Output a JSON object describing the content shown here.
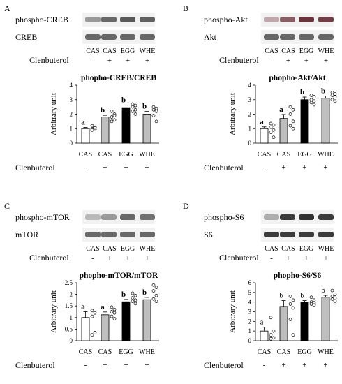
{
  "panels": [
    {
      "letter": "A",
      "blot_labels": [
        "phospho-CREB",
        "CREB"
      ],
      "lanes": [
        "CAS",
        "CAS",
        "EGG",
        "WHE"
      ],
      "treatment_label": "Clenbuterol",
      "treatment_signs": [
        "-",
        "+",
        "+",
        "+"
      ],
      "blot_colors": [
        "#505050",
        "#505050"
      ],
      "blot_intensity": [
        [
          0.55,
          0.85,
          0.95,
          0.9
        ],
        [
          0.85,
          0.85,
          0.85,
          0.85
        ]
      ]
    },
    {
      "letter": "B",
      "blot_labels": [
        "phospho-Akt",
        "Akt"
      ],
      "lanes": [
        "CAS",
        "CAS",
        "EGG",
        "WHE"
      ],
      "treatment_label": "Clenbuterol",
      "treatment_signs": [
        "-",
        "+",
        "+",
        "+"
      ],
      "blot_colors": [
        "#5a2028",
        "#505050"
      ],
      "blot_intensity": [
        [
          0.35,
          0.7,
          0.9,
          0.85
        ],
        [
          0.85,
          0.85,
          0.85,
          0.85
        ]
      ]
    },
    {
      "letter": "C",
      "blot_labels": [
        "phospho-mTOR",
        "mTOR"
      ],
      "lanes": [
        "CAS",
        "CAS",
        "EGG",
        "WHE"
      ],
      "treatment_label": "Clenbuterol",
      "treatment_signs": [
        "-",
        "+",
        "+",
        "+"
      ],
      "blot_colors": [
        "#505050",
        "#505050"
      ],
      "blot_intensity": [
        [
          0.35,
          0.55,
          0.85,
          0.8
        ],
        [
          0.85,
          0.85,
          0.85,
          0.85
        ]
      ]
    },
    {
      "letter": "D",
      "blot_labels": [
        "phospho-S6",
        "S6"
      ],
      "lanes": [
        "CAS",
        "CAS",
        "EGG",
        "WHE"
      ],
      "treatment_label": "Clenbuterol",
      "treatment_signs": [
        "-",
        "+",
        "+",
        "+"
      ],
      "blot_colors": [
        "#303030",
        "#303030"
      ],
      "blot_intensity": [
        [
          0.35,
          0.95,
          1.0,
          0.95
        ],
        [
          0.95,
          0.95,
          0.95,
          0.95
        ]
      ]
    }
  ],
  "chart_data": [
    {
      "type": "bar",
      "title": "phopho-CREB/CREB",
      "ylabel": "Arbitrary unit",
      "ylim": [
        0,
        4
      ],
      "yticks": [
        0,
        1,
        2,
        3,
        4
      ],
      "categories": [
        "CAS",
        "CAS",
        "EGG",
        "WHE"
      ],
      "values": [
        1.0,
        1.8,
        2.45,
        2.0
      ],
      "errors": [
        0.08,
        0.12,
        0.18,
        0.2
      ],
      "letters": [
        "a",
        "b",
        "b",
        "b"
      ],
      "bar_colors": [
        "#ffffff",
        "#bfbfbf",
        "#000000",
        "#bfbfbf"
      ],
      "points": [
        [
          1.2,
          1.1,
          1.0,
          0.95,
          0.9,
          1.05
        ],
        [
          2.2,
          2.0,
          1.8,
          1.6,
          1.5,
          1.9
        ],
        [
          2.7,
          2.6,
          2.5,
          2.3,
          2.2,
          2.0
        ],
        [
          2.5,
          2.4,
          2.3,
          2.2,
          1.9,
          1.5
        ]
      ]
    },
    {
      "type": "bar",
      "title": "phopho-Akt/Akt",
      "ylabel": "Arbitrary unit",
      "ylim": [
        0,
        4
      ],
      "yticks": [
        0,
        1,
        2,
        3,
        4
      ],
      "categories": [
        "CAS",
        "CAS",
        "EGG",
        "WHE"
      ],
      "values": [
        1.0,
        1.7,
        3.0,
        3.1
      ],
      "errors": [
        0.12,
        0.28,
        0.18,
        0.15
      ],
      "letters": [
        "a",
        "a",
        "b",
        "b"
      ],
      "bar_colors": [
        "#ffffff",
        "#bfbfbf",
        "#000000",
        "#bfbfbf"
      ],
      "points": [
        [
          1.35,
          1.25,
          1.1,
          0.9,
          0.75,
          0.4
        ],
        [
          2.5,
          2.3,
          2.0,
          1.5,
          1.2,
          1.0
        ],
        [
          3.3,
          3.2,
          3.0,
          2.9,
          2.8,
          2.65
        ],
        [
          3.5,
          3.4,
          3.3,
          3.2,
          3.0,
          2.9
        ]
      ]
    },
    {
      "type": "bar",
      "title": "phopho-mTOR/mTOR",
      "ylabel": "Arbitrary unit",
      "ylim": [
        0,
        2.5
      ],
      "yticks": [
        0,
        0.5,
        1.0,
        1.5,
        2.0,
        2.5
      ],
      "categories": [
        "CAS",
        "CAS",
        "EGG",
        "WHE"
      ],
      "values": [
        1.0,
        1.12,
        1.68,
        1.77
      ],
      "errors": [
        0.25,
        0.12,
        0.1,
        0.1
      ],
      "letters": [
        "a",
        "a",
        "b",
        "b"
      ],
      "bar_colors": [
        "#ffffff",
        "#bfbfbf",
        "#000000",
        "#bfbfbf"
      ],
      "points": [
        [
          1.3,
          1.2,
          1.05,
          0.35,
          0.25
        ],
        [
          1.45,
          1.35,
          1.25,
          1.2,
          1.05,
          0.95
        ],
        [
          2.05,
          1.95,
          1.85,
          1.75,
          1.7,
          1.6
        ],
        [
          2.4,
          2.3,
          2.15,
          1.95,
          1.8,
          1.7
        ]
      ]
    },
    {
      "type": "bar",
      "title": "phopho-S6/S6",
      "ylabel": "Arbitrary unit",
      "ylim": [
        0,
        6
      ],
      "yticks": [
        0,
        1,
        2,
        3,
        4,
        5,
        6
      ],
      "categories": [
        "CAS",
        "CAS",
        "EGG",
        "WHE"
      ],
      "values": [
        1.0,
        3.55,
        4.0,
        4.5
      ],
      "errors": [
        0.4,
        0.6,
        0.15,
        0.2
      ],
      "letters": [
        "a",
        "b",
        "b",
        "b"
      ],
      "bar_colors": [
        "#ffffff",
        "#bfbfbf",
        "#000000",
        "#bfbfbf"
      ],
      "points": [
        [
          2.4,
          1.0,
          0.6,
          0.3,
          0.2
        ],
        [
          4.6,
          4.2,
          3.8,
          3.4,
          2.2,
          0.6
        ],
        [
          4.5,
          4.2,
          4.0,
          3.9,
          3.8,
          3.7
        ],
        [
          5.2,
          4.8,
          4.6,
          4.4,
          4.3,
          4.1
        ]
      ]
    }
  ]
}
